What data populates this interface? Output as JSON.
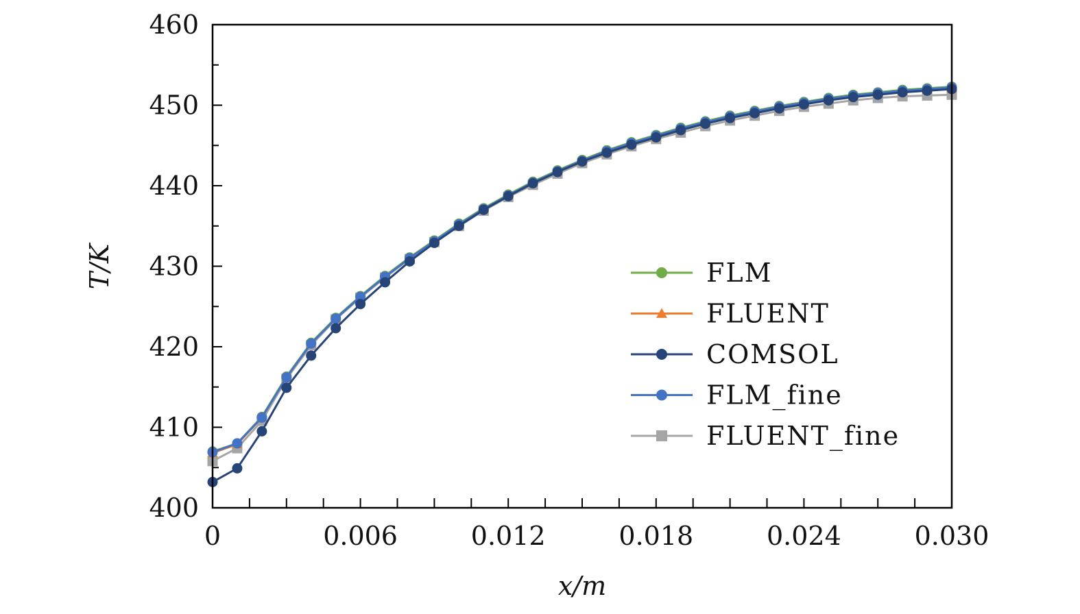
{
  "chart_data": {
    "type": "line",
    "title": "",
    "xlabel": "x/m",
    "ylabel": "T/K",
    "xlim": [
      0,
      0.03
    ],
    "ylim": [
      400,
      460
    ],
    "xticks": [
      0,
      0.006,
      0.012,
      0.018,
      0.024,
      0.03
    ],
    "xtick_labels": [
      "0",
      "0.006",
      "0.012",
      "0.018",
      "0.024",
      "0.030"
    ],
    "yticks": [
      400,
      410,
      420,
      430,
      440,
      450,
      460
    ],
    "ytick_labels": [
      "400",
      "410",
      "420",
      "430",
      "440",
      "450",
      "460"
    ],
    "grid": false,
    "legend_placement": "center-right",
    "x": [
      0,
      0.001,
      0.002,
      0.003,
      0.004,
      0.005,
      0.006,
      0.007,
      0.008,
      0.009,
      0.01,
      0.011,
      0.012,
      0.013,
      0.014,
      0.015,
      0.016,
      0.017,
      0.018,
      0.019,
      0.02,
      0.021,
      0.022,
      0.023,
      0.024,
      0.025,
      0.026,
      0.027,
      0.028,
      0.029,
      0.03
    ],
    "series": [
      {
        "name": "FLM",
        "color": "#70ad47",
        "marker": "circle",
        "values": [
          407.0,
          408.0,
          411.3,
          416.3,
          420.5,
          423.6,
          426.3,
          428.8,
          431.1,
          433.2,
          435.3,
          437.2,
          438.9,
          440.5,
          441.9,
          443.2,
          444.4,
          445.4,
          446.3,
          447.2,
          448.0,
          448.7,
          449.3,
          449.9,
          450.4,
          450.9,
          451.3,
          451.6,
          451.9,
          452.1,
          452.3
        ]
      },
      {
        "name": "FLUENT",
        "color": "#ed7d31",
        "marker": "triangle",
        "values": [
          406.8,
          407.9,
          411.2,
          416.2,
          420.4,
          423.5,
          426.2,
          428.7,
          431.0,
          433.1,
          435.2,
          437.1,
          438.8,
          440.4,
          441.8,
          443.1,
          444.2,
          445.2,
          446.1,
          447.0,
          447.8,
          448.5,
          449.1,
          449.7,
          450.2,
          450.7,
          451.1,
          451.4,
          451.7,
          451.9,
          452.0
        ]
      },
      {
        "name": "COMSOL",
        "color": "#264478",
        "marker": "circle",
        "values": [
          403.2,
          404.9,
          409.5,
          414.9,
          418.9,
          422.3,
          425.3,
          428.0,
          430.6,
          432.9,
          435.0,
          437.0,
          438.7,
          440.3,
          441.7,
          443.0,
          444.1,
          445.1,
          446.0,
          446.9,
          447.7,
          448.4,
          449.0,
          449.6,
          450.1,
          450.6,
          451.0,
          451.3,
          451.6,
          451.8,
          452.0
        ]
      },
      {
        "name": "FLM_fine",
        "color": "#4472c4",
        "marker": "circle",
        "values": [
          406.9,
          408.0,
          411.2,
          416.2,
          420.4,
          423.5,
          426.2,
          428.7,
          431.0,
          433.1,
          435.2,
          437.1,
          438.8,
          440.4,
          441.8,
          443.1,
          444.3,
          445.3,
          446.2,
          447.1,
          447.9,
          448.6,
          449.2,
          449.8,
          450.3,
          450.8,
          451.2,
          451.5,
          451.8,
          452.0,
          452.2
        ]
      },
      {
        "name": "FLUENT_fine",
        "color": "#a5a5a5",
        "marker": "square",
        "values": [
          405.8,
          407.4,
          410.8,
          416.0,
          420.2,
          423.4,
          426.1,
          428.6,
          430.9,
          433.0,
          435.0,
          436.9,
          438.6,
          440.1,
          441.5,
          442.8,
          443.9,
          444.9,
          445.8,
          446.6,
          447.4,
          448.1,
          448.7,
          449.3,
          449.8,
          450.2,
          450.6,
          450.9,
          451.1,
          451.2,
          451.3
        ]
      }
    ]
  }
}
